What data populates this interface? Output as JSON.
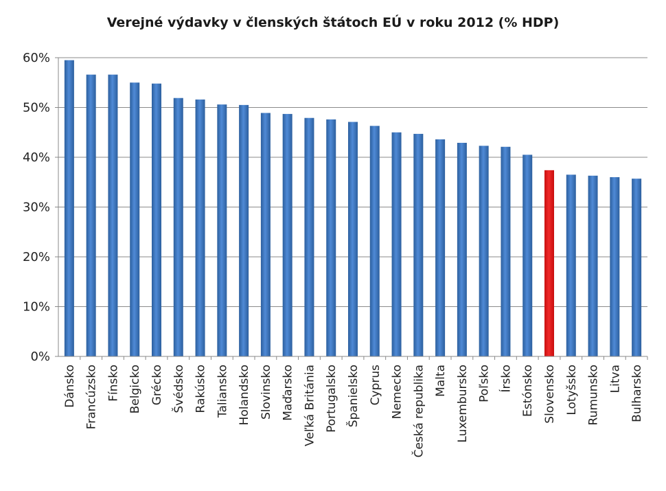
{
  "chart_data": {
    "type": "bar",
    "title": "Verejné výdavky  v členských  štátoch EÚ v roku 2012 (% HDP)",
    "xlabel": "",
    "ylabel": "",
    "ylim": [
      0,
      60
    ],
    "y_ticks": [
      "0%",
      "10%",
      "20%",
      "30%",
      "40%",
      "50%",
      "60%"
    ],
    "grid": true,
    "categories": [
      "Dánsko",
      "Francúzsko",
      "Fínsko",
      "Belgicko",
      "Grécko",
      "Švédsko",
      "Rakúsko",
      "Taliansko",
      "Holandsko",
      "Slovinsko",
      "Maďarsko",
      "Veľká Británia",
      "Portugalsko",
      "Španielsko",
      "Cyprus",
      "Nemecko",
      "Česká republika",
      "Malta",
      "Luxembursko",
      "Poľsko",
      "Írsko",
      "Estónsko",
      "Slovensko",
      "Lotyšsko",
      "Rumunsko",
      "Litva",
      "Bulharsko"
    ],
    "values": [
      59.5,
      56.6,
      56.6,
      55.0,
      54.8,
      51.9,
      51.6,
      50.6,
      50.5,
      48.9,
      48.7,
      47.9,
      47.6,
      47.1,
      46.3,
      45.0,
      44.7,
      43.6,
      42.9,
      42.3,
      42.1,
      40.5,
      37.4,
      36.5,
      36.3,
      36.0,
      35.7
    ],
    "highlight_category": "Slovensko",
    "colors": {
      "bar": "#3a78c7",
      "highlight": "#e11b1b",
      "grid": "#8a8a8a"
    }
  }
}
